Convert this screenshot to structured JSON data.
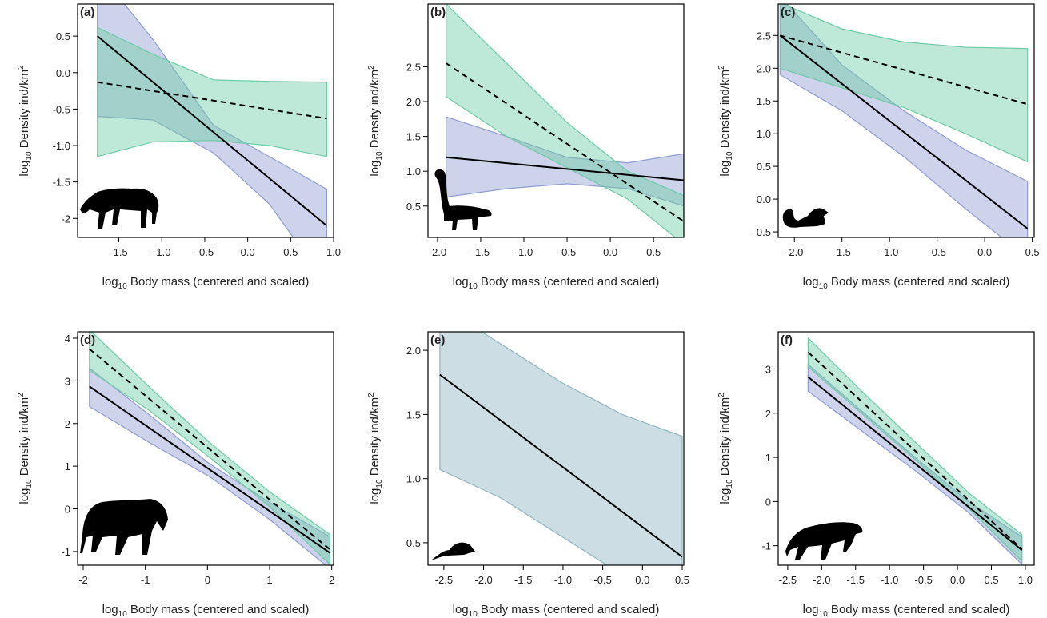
{
  "chart_data": [
    {
      "type": "line",
      "label": "(a)",
      "xlabel": [
        "log",
        "10",
        " Body mass (centered and scaled)"
      ],
      "ylabel": [
        "log",
        "10",
        " Density ind/km",
        "2"
      ],
      "x": [
        -1.75,
        -1.1,
        -0.4,
        0.25,
        0.92
      ],
      "xlim": [
        -1.98,
        1.0
      ],
      "ylim": [
        -2.26,
        0.94
      ],
      "xticks": [
        -1.5,
        {
          "value": -1,
          "label": "-1.0"
        },
        -0.5,
        {
          "value": 0,
          "label": "0.0"
        },
        0.5,
        {
          "value": 1,
          "label": "1.0"
        }
      ],
      "yticks": [
        -2.0,
        -1.5,
        {
          "value": -1,
          "label": "-1.0"
        },
        -0.5,
        {
          "value": 0,
          "label": "0.0"
        },
        0.5
      ],
      "series": [
        {
          "color": "#000000",
          "dash": "solid",
          "band_color": "#8f9dd0",
          "values": [
            0.5,
            -0.133,
            -0.815,
            -1.448,
            -2.1
          ],
          "upper": [
            1.4,
            0.45,
            -0.72,
            -1.15,
            -1.6
          ],
          "lower": [
            -0.6,
            -0.65,
            -1.1,
            -1.8,
            -2.9
          ]
        },
        {
          "color": "#000000",
          "dash": "dashed",
          "band_color": "#6fcba6",
          "values": [
            -0.13,
            -0.252,
            -0.383,
            -0.505,
            -0.63
          ],
          "upper": [
            0.62,
            0.25,
            -0.1,
            -0.12,
            -0.13
          ],
          "lower": [
            -1.15,
            -0.95,
            -0.93,
            -1.0,
            -1.15
          ]
        }
      ]
    },
    {
      "type": "line",
      "label": "(b)",
      "xlabel": [
        "log",
        "10",
        " Body mass (centered and scaled)"
      ],
      "ylabel": [
        "log",
        "10",
        " Density ind/km",
        "2"
      ],
      "x": [
        -1.9,
        -1.2,
        -0.5,
        0.2,
        0.85
      ],
      "xlim": [
        -2.11,
        0.85
      ],
      "ylim": [
        0.05,
        3.4
      ],
      "xticks": [
        {
          "value": -2,
          "label": "-2.0"
        },
        -1.5,
        {
          "value": -1,
          "label": "-1.0"
        },
        -0.5,
        {
          "value": 0,
          "label": "0.0"
        },
        0.5
      ],
      "yticks": [
        0.5,
        {
          "value": 1,
          "label": "1.0"
        },
        1.5,
        {
          "value": 2,
          "label": "2.0"
        },
        2.5
      ],
      "series": [
        {
          "color": "#000000",
          "dash": "solid",
          "band_color": "#8f9dd0",
          "values": [
            1.2,
            1.116,
            1.032,
            0.948,
            0.87
          ],
          "upper": [
            1.78,
            1.5,
            1.2,
            1.12,
            1.25
          ],
          "lower": [
            0.63,
            0.75,
            0.82,
            0.75,
            0.5
          ]
        },
        {
          "color": "#000000",
          "dash": "dashed",
          "band_color": "#6fcba6",
          "values": [
            2.55,
            1.972,
            1.394,
            0.816,
            0.28
          ],
          "upper": [
            3.4,
            2.55,
            1.7,
            1.0,
            0.65
          ],
          "lower": [
            2.07,
            1.5,
            1.05,
            0.6,
            -0.05
          ]
        }
      ]
    },
    {
      "type": "line",
      "label": "(c)",
      "xlabel": [
        "log",
        "10",
        " Body mass (centered and scaled)"
      ],
      "ylabel": [
        "log",
        "10",
        " Density ind/km",
        "2"
      ],
      "x": [
        -2.15,
        -1.5,
        -0.85,
        -0.2,
        0.45
      ],
      "xlim": [
        -2.17,
        0.52
      ],
      "ylim": [
        -0.585,
        2.98
      ],
      "xticks": [
        {
          "value": -2,
          "label": "-2.0"
        },
        -1.5,
        {
          "value": -1,
          "label": "-1.0"
        },
        -0.5,
        {
          "value": 0,
          "label": "0.0"
        },
        0.5
      ],
      "yticks": [
        -0.5,
        {
          "value": 0,
          "label": "0.0"
        },
        0.5,
        {
          "value": 1,
          "label": "1.0"
        },
        1.5,
        {
          "value": 2,
          "label": "2.0"
        },
        2.5
      ],
      "series": [
        {
          "color": "#000000",
          "dash": "solid",
          "band_color": "#8f9dd0",
          "values": [
            2.5,
            1.7625,
            1.025,
            0.2875,
            -0.45
          ],
          "upper": [
            3.1,
            2.05,
            1.35,
            0.75,
            0.27
          ],
          "lower": [
            1.9,
            1.35,
            0.65,
            -0.15,
            -0.9
          ]
        },
        {
          "color": "#000000",
          "dash": "dashed",
          "band_color": "#6fcba6",
          "values": [
            2.5,
            2.2375,
            1.975,
            1.7125,
            1.45
          ],
          "upper": [
            3.0,
            2.6,
            2.4,
            2.32,
            2.3
          ],
          "lower": [
            2.0,
            1.7,
            1.4,
            1.0,
            0.57
          ]
        }
      ]
    },
    {
      "type": "line",
      "label": "(d)",
      "xlabel": [
        "log",
        "10",
        " Body mass (centered and scaled)"
      ],
      "ylabel": [
        "log",
        "10",
        " Density ind/km",
        "2"
      ],
      "x": [
        -1.9,
        -0.93,
        0.04,
        1.0,
        1.97
      ],
      "xlim": [
        -2.09,
        2.03
      ],
      "ylim": [
        -1.32,
        4.15
      ],
      "xticks": [
        -2,
        -1,
        0,
        1,
        2
      ],
      "yticks": [
        -1,
        0,
        1,
        2,
        3,
        4
      ],
      "series": [
        {
          "color": "#000000",
          "dash": "solid",
          "band_color": "#8f9dd0",
          "values": [
            2.87,
            1.892,
            0.915,
            -0.052,
            -1.03
          ],
          "upper": [
            3.3,
            2.2,
            1.05,
            0.15,
            -0.65
          ],
          "lower": [
            2.4,
            1.55,
            0.75,
            -0.25,
            -1.4
          ]
        },
        {
          "color": "#000000",
          "dash": "dashed",
          "band_color": "#6fcba6",
          "values": [
            3.75,
            2.572,
            1.394,
            0.216,
            -0.95
          ],
          "upper": [
            4.2,
            2.85,
            1.55,
            0.4,
            -0.6
          ],
          "lower": [
            3.25,
            2.3,
            1.2,
            0.05,
            -1.3
          ]
        }
      ]
    },
    {
      "type": "line",
      "label": "(e)",
      "xlabel": [
        "log",
        "10",
        " Body mass (centered and scaled)"
      ],
      "ylabel": [
        "log",
        "10",
        " Density ind/km",
        "2"
      ],
      "x": [
        -2.55,
        -1.785,
        -1.02,
        -0.255,
        0.5
      ],
      "xlim": [
        -2.7,
        0.52
      ],
      "ylim": [
        0.325,
        2.144
      ],
      "xticks": [
        -2.5,
        {
          "value": -2,
          "label": "-2.0"
        },
        -1.5,
        {
          "value": -1,
          "label": "-1.0"
        },
        -0.5,
        {
          "value": 0,
          "label": "0.0"
        },
        0.5
      ],
      "yticks": [
        0.5,
        {
          "value": 1,
          "label": "1.0"
        },
        1.5,
        {
          "value": 2,
          "label": "2.0"
        }
      ],
      "series": [
        {
          "color": "#000000",
          "dash": "solid",
          "band_color": "#8fb5c0",
          "values": [
            1.81,
            1.454,
            1.098,
            0.741,
            0.39
          ],
          "upper": [
            2.35,
            2.05,
            1.75,
            1.5,
            1.33
          ],
          "lower": [
            1.07,
            0.85,
            0.55,
            0.25,
            -0.05
          ]
        }
      ]
    },
    {
      "type": "line",
      "label": "(f)",
      "xlabel": [
        "log",
        "10",
        " Body mass (centered and scaled)"
      ],
      "ylabel": [
        "log",
        "10",
        " Density ind/km",
        "2"
      ],
      "x": [
        -2.2,
        -1.4125,
        -0.625,
        0.1625,
        0.95
      ],
      "xlim": [
        -2.64,
        1.13
      ],
      "ylim": [
        -1.44,
        3.84
      ],
      "xticks": [
        -2.5,
        {
          "value": -2,
          "label": "-2.0"
        },
        -1.5,
        {
          "value": -1,
          "label": "-1.0"
        },
        -0.5,
        {
          "value": 0,
          "label": "0.0"
        },
        0.5,
        {
          "value": 1,
          "label": "1.0"
        }
      ],
      "yticks": [
        -1,
        0,
        1,
        2,
        3
      ],
      "series": [
        {
          "color": "#000000",
          "dash": "solid",
          "band_color": "#8f9dd0",
          "values": [
            2.82,
            1.84,
            0.86,
            -0.12,
            -1.1
          ],
          "upper": [
            3.1,
            2.05,
            1.0,
            0.0,
            -0.8
          ],
          "lower": [
            2.5,
            1.6,
            0.7,
            -0.25,
            -1.42
          ]
        },
        {
          "color": "#000000",
          "dash": "dashed",
          "band_color": "#6fcba6",
          "values": [
            3.38,
            2.265,
            1.15,
            0.035,
            -1.08
          ],
          "upper": [
            3.7,
            2.5,
            1.35,
            0.2,
            -0.75
          ],
          "lower": [
            3.05,
            2.0,
            0.95,
            -0.15,
            -1.35
          ]
        }
      ]
    }
  ]
}
